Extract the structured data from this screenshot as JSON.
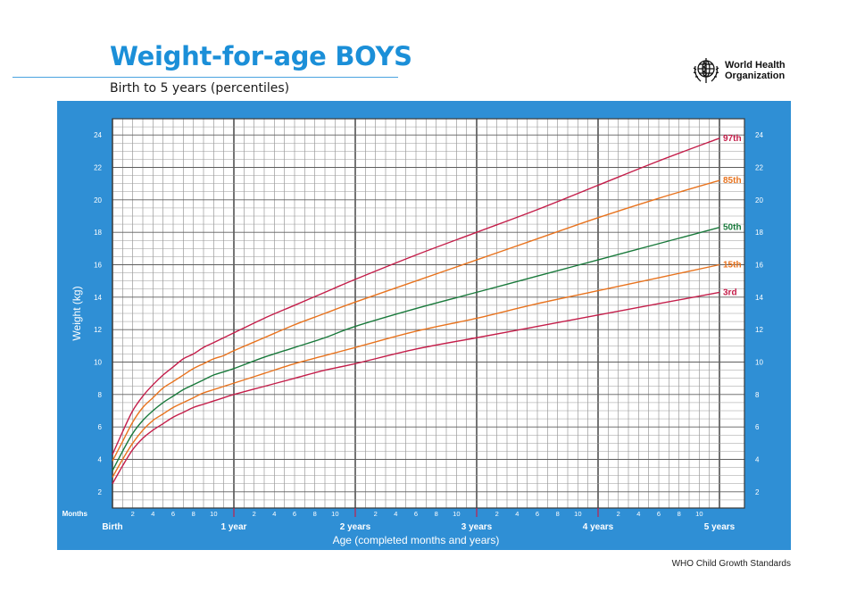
{
  "header": {
    "title": "Weight-for-age BOYS",
    "subtitle": "Birth to 5 years (percentiles)"
  },
  "logo": {
    "emblem": "who-emblem-icon",
    "line1": "World Health",
    "line2": "Organization"
  },
  "footer": {
    "text": "WHO Child Growth Standards"
  },
  "colors": {
    "panel": "#2f8fd5",
    "grid": "#5a5a5a",
    "p3": "#c41e4a",
    "p15": "#e8731e",
    "p50": "#1a7a3c",
    "p85": "#e8731e",
    "p97": "#c41e4a"
  },
  "chart_data": {
    "type": "line",
    "title": "Weight-for-age BOYS",
    "subtitle": "Birth to 5 years (percentiles)",
    "xlabel": "Age (completed months and years)",
    "ylabel": "Weight (kg)",
    "xlim": [
      0,
      60
    ],
    "ylim": [
      1,
      25
    ],
    "y_ticks": [
      2,
      4,
      6,
      8,
      10,
      12,
      14,
      16,
      18,
      20,
      22,
      24
    ],
    "x_row_label": "Months",
    "month_tick_labels": [
      "2",
      "4",
      "6",
      "8",
      "10"
    ],
    "year_labels": [
      "Birth",
      "1 year",
      "2 years",
      "3 years",
      "4 years",
      "5 years"
    ],
    "grid": true,
    "x": [
      0,
      1,
      2,
      3,
      4,
      5,
      6,
      7,
      8,
      9,
      10,
      11,
      12,
      15,
      18,
      21,
      24,
      30,
      36,
      42,
      48,
      54,
      60
    ],
    "series": [
      {
        "name": "97th",
        "color_key": "p97",
        "values": [
          4.3,
          5.7,
          7.0,
          7.9,
          8.6,
          9.2,
          9.7,
          10.2,
          10.5,
          10.9,
          11.2,
          11.5,
          11.8,
          12.7,
          13.5,
          14.3,
          15.1,
          16.6,
          18.0,
          19.4,
          20.9,
          22.4,
          23.8
        ]
      },
      {
        "name": "85th",
        "color_key": "p85",
        "values": [
          3.9,
          5.1,
          6.3,
          7.2,
          7.8,
          8.4,
          8.8,
          9.2,
          9.6,
          9.9,
          10.2,
          10.4,
          10.7,
          11.5,
          12.3,
          13.0,
          13.7,
          15.0,
          16.3,
          17.6,
          18.9,
          20.1,
          21.2
        ]
      },
      {
        "name": "50th",
        "color_key": "p50",
        "values": [
          3.3,
          4.5,
          5.6,
          6.4,
          7.0,
          7.5,
          7.9,
          8.3,
          8.6,
          8.9,
          9.2,
          9.4,
          9.6,
          10.3,
          10.9,
          11.5,
          12.2,
          13.3,
          14.3,
          15.3,
          16.3,
          17.3,
          18.3
        ]
      },
      {
        "name": "15th",
        "color_key": "p15",
        "values": [
          2.9,
          4.0,
          5.0,
          5.8,
          6.4,
          6.8,
          7.2,
          7.5,
          7.8,
          8.1,
          8.3,
          8.5,
          8.7,
          9.3,
          9.9,
          10.4,
          10.9,
          11.9,
          12.7,
          13.6,
          14.4,
          15.2,
          16.0
        ]
      },
      {
        "name": "3rd",
        "color_key": "p3",
        "values": [
          2.5,
          3.6,
          4.6,
          5.3,
          5.8,
          6.2,
          6.6,
          6.9,
          7.2,
          7.4,
          7.6,
          7.8,
          8.0,
          8.5,
          9.0,
          9.5,
          9.9,
          10.8,
          11.5,
          12.2,
          12.9,
          13.6,
          14.3
        ]
      }
    ]
  }
}
